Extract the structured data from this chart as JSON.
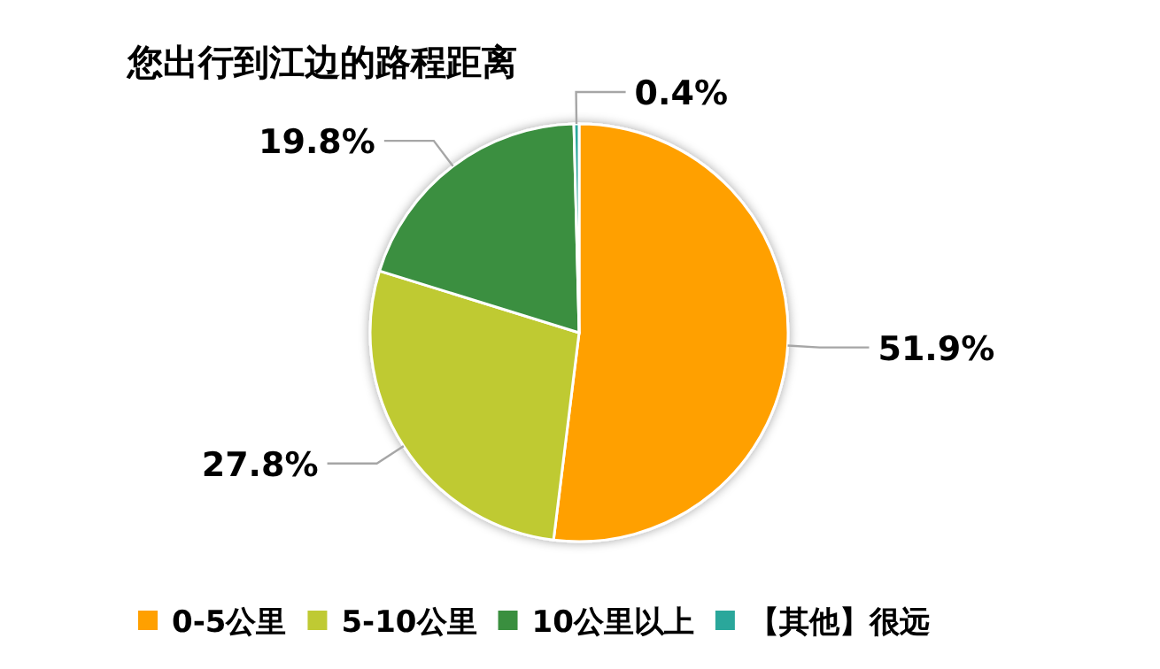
{
  "chart_data": {
    "type": "pie",
    "title": "您出行到江边的路程距离",
    "categories": [
      "0-5公里",
      "5-10公里",
      "10公里以上",
      "【其他】很远"
    ],
    "values": [
      51.9,
      27.8,
      19.8,
      0.4
    ],
    "colors": [
      "#ffa000",
      "#bfca33",
      "#3a8f3f",
      "#2aa79b"
    ],
    "value_labels": [
      "51.9%",
      "27.8%",
      "19.8%",
      "0.4%"
    ],
    "legend": "bottom"
  }
}
